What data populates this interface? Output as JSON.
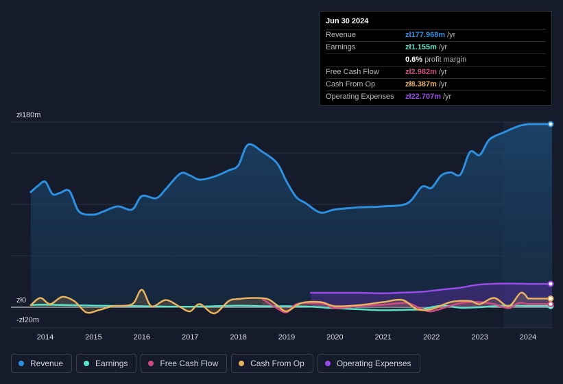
{
  "chart_data": {
    "type": "line",
    "y_unit_labels": {
      "top": "zł180m",
      "zero": "zł0",
      "bottom": "-zł20m"
    },
    "ylim": [
      -20,
      180
    ],
    "xlim": [
      2013.7,
      2024.5
    ],
    "x_ticks": [
      "2014",
      "2015",
      "2016",
      "2017",
      "2018",
      "2019",
      "2020",
      "2021",
      "2022",
      "2023",
      "2024"
    ],
    "forecast_start": 2023.5,
    "series": [
      {
        "name": "Revenue",
        "color": "#2d8fe0",
        "points": [
          [
            2013.7,
            112
          ],
          [
            2013.85,
            118
          ],
          [
            2014.0,
            122
          ],
          [
            2014.15,
            110
          ],
          [
            2014.3,
            111
          ],
          [
            2014.5,
            113
          ],
          [
            2014.7,
            93
          ],
          [
            2015.0,
            90
          ],
          [
            2015.2,
            93
          ],
          [
            2015.5,
            98
          ],
          [
            2015.8,
            95
          ],
          [
            2016.0,
            108
          ],
          [
            2016.3,
            106
          ],
          [
            2016.5,
            115
          ],
          [
            2016.8,
            130
          ],
          [
            2017.0,
            128
          ],
          [
            2017.2,
            124
          ],
          [
            2017.5,
            127
          ],
          [
            2017.8,
            133
          ],
          [
            2018.0,
            138
          ],
          [
            2018.2,
            158
          ],
          [
            2018.5,
            151
          ],
          [
            2018.8,
            140
          ],
          [
            2019.0,
            122
          ],
          [
            2019.2,
            107
          ],
          [
            2019.4,
            101
          ],
          [
            2019.7,
            92
          ],
          [
            2020.0,
            95
          ],
          [
            2020.5,
            97
          ],
          [
            2021.0,
            98
          ],
          [
            2021.5,
            101
          ],
          [
            2021.8,
            117
          ],
          [
            2022.0,
            116
          ],
          [
            2022.2,
            128
          ],
          [
            2022.4,
            131
          ],
          [
            2022.6,
            129
          ],
          [
            2022.8,
            151
          ],
          [
            2023.0,
            148
          ],
          [
            2023.2,
            163
          ],
          [
            2023.5,
            170
          ],
          [
            2023.8,
            176
          ],
          [
            2024.0,
            177.968
          ]
        ]
      },
      {
        "name": "Earnings",
        "color": "#5ce3c9",
        "points": [
          [
            2013.7,
            2
          ],
          [
            2014.0,
            2.5
          ],
          [
            2015.0,
            1.5
          ],
          [
            2016.0,
            1
          ],
          [
            2017.0,
            0.5
          ],
          [
            2018.0,
            1.5
          ],
          [
            2018.5,
            1
          ],
          [
            2019.0,
            1
          ],
          [
            2019.5,
            0.5
          ],
          [
            2020.0,
            -1
          ],
          [
            2020.5,
            -2
          ],
          [
            2021.0,
            -3
          ],
          [
            2021.5,
            -2.5
          ],
          [
            2021.8,
            -2
          ],
          [
            2022.2,
            1.5
          ],
          [
            2022.6,
            -0.5
          ],
          [
            2023.0,
            0
          ],
          [
            2023.5,
            1.5
          ],
          [
            2024.0,
            1.155
          ]
        ]
      },
      {
        "name": "Free Cash Flow",
        "color": "#cf4c82",
        "points": [
          [
            2018.5,
            8
          ],
          [
            2018.8,
            -1
          ],
          [
            2019.0,
            -5
          ],
          [
            2019.2,
            3
          ],
          [
            2019.5,
            4
          ],
          [
            2019.8,
            3
          ],
          [
            2020.0,
            -1
          ],
          [
            2020.5,
            1
          ],
          [
            2021.0,
            2.5
          ],
          [
            2021.5,
            4
          ],
          [
            2021.8,
            -2
          ],
          [
            2022.0,
            -4
          ],
          [
            2022.3,
            0
          ],
          [
            2022.6,
            4
          ],
          [
            2023.0,
            5
          ],
          [
            2023.3,
            3
          ],
          [
            2023.6,
            -1
          ],
          [
            2023.8,
            4
          ],
          [
            2024.0,
            2.982
          ]
        ]
      },
      {
        "name": "Cash From Op",
        "color": "#e8b25e",
        "points": [
          [
            2013.7,
            2
          ],
          [
            2013.9,
            9
          ],
          [
            2014.1,
            3
          ],
          [
            2014.35,
            10
          ],
          [
            2014.6,
            6
          ],
          [
            2014.85,
            -5
          ],
          [
            2015.1,
            -3
          ],
          [
            2015.4,
            1
          ],
          [
            2015.8,
            3
          ],
          [
            2016.0,
            17
          ],
          [
            2016.2,
            1
          ],
          [
            2016.5,
            7
          ],
          [
            2016.8,
            0
          ],
          [
            2017.0,
            -4
          ],
          [
            2017.2,
            3
          ],
          [
            2017.5,
            -6
          ],
          [
            2017.8,
            6
          ],
          [
            2018.0,
            8
          ],
          [
            2018.3,
            9
          ],
          [
            2018.6,
            8
          ],
          [
            2018.8,
            2
          ],
          [
            2019.0,
            -4
          ],
          [
            2019.3,
            4
          ],
          [
            2019.7,
            5
          ],
          [
            2020.0,
            1
          ],
          [
            2020.5,
            2
          ],
          [
            2021.0,
            5
          ],
          [
            2021.4,
            7
          ],
          [
            2021.7,
            -2
          ],
          [
            2022.0,
            -2
          ],
          [
            2022.4,
            5
          ],
          [
            2022.8,
            6
          ],
          [
            2023.0,
            3
          ],
          [
            2023.3,
            9
          ],
          [
            2023.6,
            1
          ],
          [
            2023.85,
            14
          ],
          [
            2024.0,
            8.387
          ]
        ]
      },
      {
        "name": "Operating Expenses",
        "color": "#9a4bea",
        "points": [
          [
            2019.5,
            14
          ],
          [
            2020.0,
            14
          ],
          [
            2020.5,
            14
          ],
          [
            2021.0,
            13.5
          ],
          [
            2021.3,
            14
          ],
          [
            2021.8,
            15
          ],
          [
            2022.2,
            17
          ],
          [
            2022.6,
            19
          ],
          [
            2023.0,
            22
          ],
          [
            2023.5,
            23
          ],
          [
            2024.0,
            22.707
          ]
        ]
      }
    ]
  },
  "tooltip": {
    "date": "Jun 30 2024",
    "rows": [
      {
        "label": "Revenue",
        "value": "zł177.968m",
        "unit": "/yr",
        "color": "#2d8fe0"
      },
      {
        "label": "Earnings",
        "value": "zł1.155m",
        "unit": "/yr",
        "color": "#5ce3c9"
      },
      {
        "label": "",
        "value": "0.6%",
        "unit": "profit margin",
        "color": "#ffffff"
      },
      {
        "label": "Free Cash Flow",
        "value": "zł2.982m",
        "unit": "/yr",
        "color": "#cf4c82"
      },
      {
        "label": "Cash From Op",
        "value": "zł8.387m",
        "unit": "/yr",
        "color": "#e8b25e"
      },
      {
        "label": "Operating Expenses",
        "value": "zł22.707m",
        "unit": "/yr",
        "color": "#9a4bea"
      }
    ]
  },
  "legend": [
    {
      "label": "Revenue",
      "color": "#2d8fe0"
    },
    {
      "label": "Earnings",
      "color": "#5ce3c9"
    },
    {
      "label": "Free Cash Flow",
      "color": "#cf4c82"
    },
    {
      "label": "Cash From Op",
      "color": "#e8b25e"
    },
    {
      "label": "Operating Expenses",
      "color": "#9a4bea"
    }
  ]
}
